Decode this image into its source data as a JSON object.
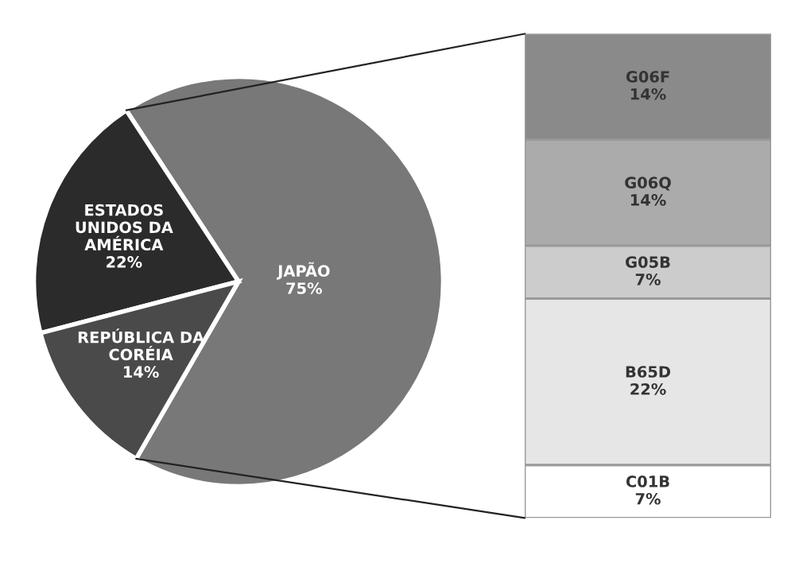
{
  "chart_data": [
    {
      "type": "pie",
      "categories": [
        "JAPÃO",
        "ESTADOS\nUNIDOS DA\nAMÉRICA",
        "REPÚBLICA DA\nCORÉIA"
      ],
      "values": [
        75,
        22,
        14
      ],
      "colors": [
        "#787878",
        "#2b2b2b",
        "#4a4a4a"
      ],
      "value_labels": [
        "75%",
        "22%",
        "14%"
      ]
    },
    {
      "type": "bar",
      "stacked": true,
      "categories": [
        null
      ],
      "series": [
        {
          "name": "C01B",
          "color": "#ffffff",
          "values": [
            7
          ],
          "value_labels": [
            "7%"
          ]
        },
        {
          "name": "B65D",
          "color": "#e6e6e6",
          "values": [
            22
          ],
          "value_labels": [
            "22%"
          ]
        },
        {
          "name": "G05B",
          "color": "#cccccc",
          "values": [
            7
          ],
          "value_labels": [
            "7%"
          ]
        },
        {
          "name": "G06Q",
          "color": "#ababab",
          "values": [
            14
          ],
          "value_labels": [
            "14%"
          ]
        },
        {
          "name": "G06F",
          "color": "#8a8a8a",
          "values": [
            14
          ],
          "value_labels": [
            "14%"
          ]
        }
      ]
    }
  ]
}
